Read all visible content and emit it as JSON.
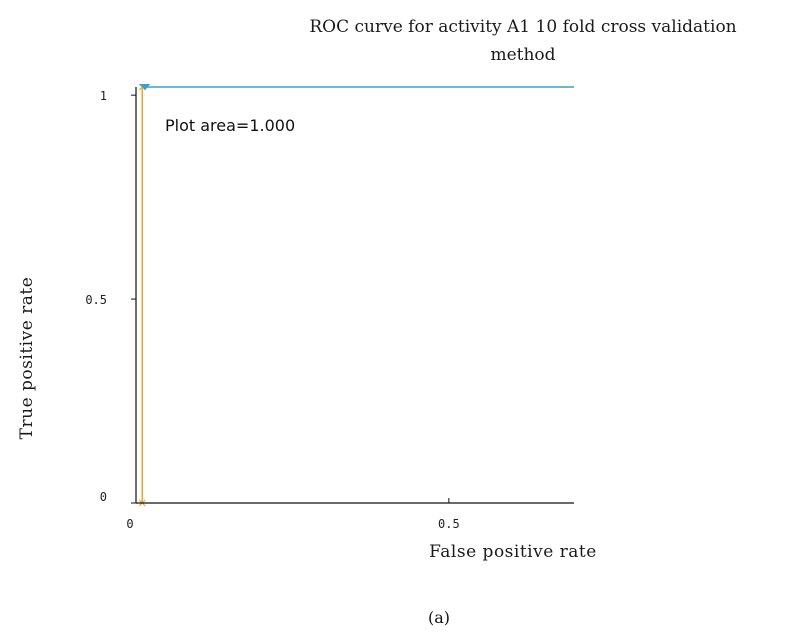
{
  "chart_data": {
    "type": "line",
    "title_line1": "ROC curve for activity A1 10 fold cross validation",
    "title_line2": "method",
    "xlabel": "False  positive  rate",
    "ylabel": "True  positive  rate",
    "xlim": [
      0,
      0.7
    ],
    "ylim": [
      0,
      1.02
    ],
    "x_ticks": [
      {
        "value": 0,
        "label": "0"
      },
      {
        "value": 0.5,
        "label": "0.5"
      }
    ],
    "y_ticks": [
      {
        "value": 0,
        "label": "0"
      },
      {
        "value": 0.5,
        "label": "0.5"
      },
      {
        "value": 1,
        "label": "1"
      }
    ],
    "annotation": "Plot area=1.000",
    "grid": false,
    "series": [
      {
        "color": "#e8a93a",
        "x": [
          0.01,
          0.01
        ],
        "y": [
          0,
          1.02
        ]
      },
      {
        "color": "#3a9fd0",
        "x": [
          0.01,
          0.7
        ],
        "y": [
          1.02,
          1.02
        ]
      }
    ],
    "caption": "(a)"
  }
}
